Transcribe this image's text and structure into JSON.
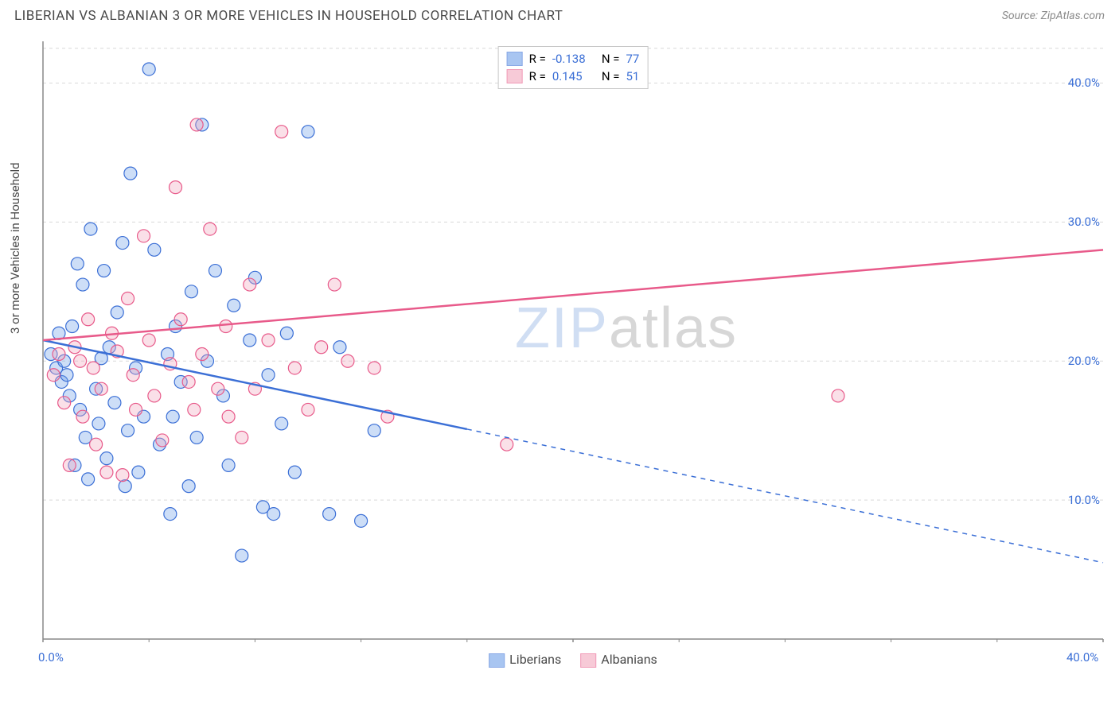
{
  "title": "LIBERIAN VS ALBANIAN 3 OR MORE VEHICLES IN HOUSEHOLD CORRELATION CHART",
  "source": "Source: ZipAtlas.com",
  "y_axis_label": "3 or more Vehicles in Household",
  "watermark": {
    "p1": "ZIP",
    "p2": "atlas"
  },
  "chart": {
    "type": "scatter-correlation",
    "background_color": "#ffffff",
    "grid_color": "#d9d9d9",
    "axis_color": "#888888",
    "tick_color": "#888888",
    "xlim": [
      0,
      40
    ],
    "ylim": [
      0,
      43
    ],
    "y_gridlines": [
      10,
      20,
      30,
      40
    ],
    "y_tick_labels": [
      "10.0%",
      "20.0%",
      "30.0%",
      "40.0%"
    ],
    "x_major_ticks": [
      0,
      20,
      40
    ],
    "x_minor_ticks": [
      4,
      8,
      12,
      16,
      24,
      28,
      32,
      36
    ],
    "x_tick_labels_shown": [
      {
        "v": 0,
        "t": "0.0%"
      },
      {
        "v": 40,
        "t": "40.0%"
      }
    ],
    "marker_radius": 8,
    "marker_stroke_width": 1.2,
    "marker_fill_opacity": 0.35,
    "line_width": 2.5,
    "series": [
      {
        "name": "Liberians",
        "color": "#6fa0e8",
        "stroke": "#3b6fd6",
        "R": -0.138,
        "N": 77,
        "trend": {
          "x1": 0,
          "y1": 21.5,
          "x2": 40,
          "y2": 5.5,
          "solid_until_x": 16
        },
        "points": [
          [
            0.3,
            20.5
          ],
          [
            0.5,
            19.5
          ],
          [
            0.6,
            22
          ],
          [
            0.7,
            18.5
          ],
          [
            0.8,
            20
          ],
          [
            0.9,
            19
          ],
          [
            1,
            17.5
          ],
          [
            1.1,
            22.5
          ],
          [
            1.2,
            12.5
          ],
          [
            1.3,
            27
          ],
          [
            1.4,
            16.5
          ],
          [
            1.5,
            25.5
          ],
          [
            1.6,
            14.5
          ],
          [
            1.7,
            11.5
          ],
          [
            1.8,
            29.5
          ],
          [
            2,
            18
          ],
          [
            2.1,
            15.5
          ],
          [
            2.2,
            20.2
          ],
          [
            2.3,
            26.5
          ],
          [
            2.4,
            13
          ],
          [
            2.5,
            21
          ],
          [
            2.7,
            17
          ],
          [
            2.8,
            23.5
          ],
          [
            3,
            28.5
          ],
          [
            3.1,
            11
          ],
          [
            3.2,
            15
          ],
          [
            3.3,
            33.5
          ],
          [
            3.5,
            19.5
          ],
          [
            3.6,
            12
          ],
          [
            3.8,
            16
          ],
          [
            4,
            41
          ],
          [
            4.2,
            28
          ],
          [
            4.4,
            14
          ],
          [
            4.7,
            20.5
          ],
          [
            4.8,
            9
          ],
          [
            4.9,
            16
          ],
          [
            5,
            22.5
          ],
          [
            5.2,
            18.5
          ],
          [
            5.5,
            11
          ],
          [
            5.6,
            25
          ],
          [
            5.8,
            14.5
          ],
          [
            6,
            37
          ],
          [
            6.2,
            20
          ],
          [
            6.5,
            26.5
          ],
          [
            6.8,
            17.5
          ],
          [
            7,
            12.5
          ],
          [
            7.2,
            24
          ],
          [
            7.5,
            6
          ],
          [
            7.8,
            21.5
          ],
          [
            8,
            26
          ],
          [
            8.3,
            9.5
          ],
          [
            8.5,
            19
          ],
          [
            8.7,
            9
          ],
          [
            9,
            15.5
          ],
          [
            9.2,
            22
          ],
          [
            9.5,
            12
          ],
          [
            10,
            36.5
          ],
          [
            10.8,
            9
          ],
          [
            11.2,
            21
          ],
          [
            12,
            8.5
          ],
          [
            12.5,
            15
          ]
        ]
      },
      {
        "name": "Albanians",
        "color": "#f2a7bd",
        "stroke": "#e85a8a",
        "R": 0.145,
        "N": 51,
        "trend": {
          "x1": 0,
          "y1": 21.5,
          "x2": 40,
          "y2": 28,
          "solid_until_x": 40
        },
        "points": [
          [
            0.4,
            19
          ],
          [
            0.6,
            20.5
          ],
          [
            0.8,
            17
          ],
          [
            1,
            12.5
          ],
          [
            1.2,
            21
          ],
          [
            1.4,
            20
          ],
          [
            1.5,
            16
          ],
          [
            1.7,
            23
          ],
          [
            1.9,
            19.5
          ],
          [
            2,
            14
          ],
          [
            2.2,
            18
          ],
          [
            2.4,
            12
          ],
          [
            2.6,
            22
          ],
          [
            2.8,
            20.7
          ],
          [
            3,
            11.8
          ],
          [
            3.2,
            24.5
          ],
          [
            3.4,
            19
          ],
          [
            3.5,
            16.5
          ],
          [
            3.8,
            29
          ],
          [
            4,
            21.5
          ],
          [
            4.2,
            17.5
          ],
          [
            4.5,
            14.3
          ],
          [
            4.8,
            19.8
          ],
          [
            5,
            32.5
          ],
          [
            5.2,
            23
          ],
          [
            5.5,
            18.5
          ],
          [
            5.7,
            16.5
          ],
          [
            5.8,
            37
          ],
          [
            6,
            20.5
          ],
          [
            6.3,
            29.5
          ],
          [
            6.6,
            18
          ],
          [
            6.9,
            22.5
          ],
          [
            7,
            16
          ],
          [
            7.5,
            14.5
          ],
          [
            7.8,
            25.5
          ],
          [
            8,
            18
          ],
          [
            8.5,
            21.5
          ],
          [
            9,
            36.5
          ],
          [
            9.5,
            19.5
          ],
          [
            10,
            16.5
          ],
          [
            10.5,
            21
          ],
          [
            11,
            25.5
          ],
          [
            11.5,
            20
          ],
          [
            12.5,
            19.5
          ],
          [
            13,
            16
          ],
          [
            17.5,
            14
          ],
          [
            30,
            17.5
          ]
        ]
      }
    ]
  },
  "legend_top_format": {
    "R_label": "R =",
    "N_label": "N ="
  },
  "legend_bottom": [
    "Liberians",
    "Albanians"
  ]
}
